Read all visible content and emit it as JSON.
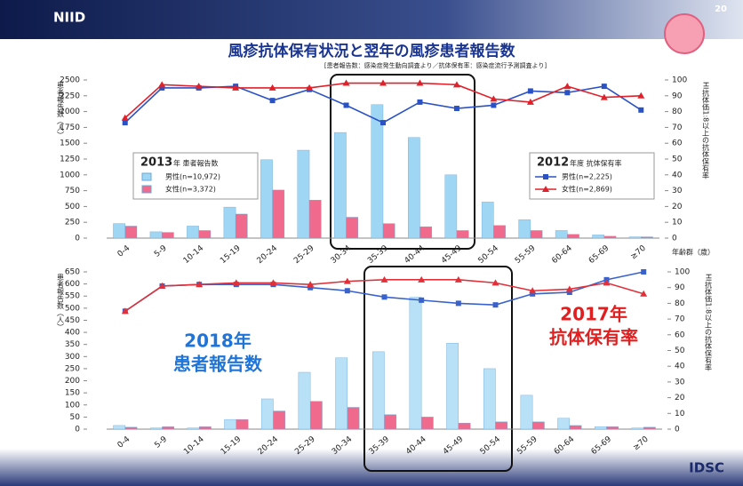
{
  "header": {
    "logo_left": "NIID",
    "logo_right": "IDSC",
    "slide_number": "20"
  },
  "chart_data": [
    {
      "type": "combo",
      "title": "風疹抗体保有状況と翌年の風疹患者報告数",
      "subtitle": "[患者報告数：感染症発生動向調査より／抗体保有率：感染症流行予測調査より]",
      "ylabel": "患者報告数（人）",
      "y2label": "HI抗体価1:8以上の抗体保有率",
      "xlabel": "年齢群（歳）",
      "categories": [
        "0-4",
        "5-9",
        "10-14",
        "15-19",
        "20-24",
        "25-29",
        "30-34",
        "35-39",
        "40-44",
        "45-49",
        "50-54",
        "55-59",
        "60-64",
        "65-69",
        "≥70"
      ],
      "series": [
        {
          "name": "男性(n=10,972)",
          "kind": "bar",
          "color": "#9fd6f4",
          "values": [
            230,
            100,
            190,
            490,
            1240,
            1390,
            1670,
            2110,
            1590,
            1000,
            570,
            290,
            120,
            50,
            20
          ]
        },
        {
          "name": "女性(n=3,372)",
          "kind": "bar",
          "color": "#ef6a8c",
          "values": [
            190,
            90,
            120,
            380,
            760,
            600,
            330,
            230,
            180,
            120,
            200,
            120,
            60,
            30,
            20
          ]
        },
        {
          "name": "男性(n=2,225)",
          "kind": "line",
          "marker": "square",
          "axis": "y2",
          "color": "#2a52c4",
          "values": [
            73,
            95,
            95,
            96,
            87,
            94,
            84,
            73,
            86,
            82,
            84,
            93,
            92,
            96,
            81
          ]
        },
        {
          "name": "女性(n=2,869)",
          "kind": "line",
          "marker": "triangle",
          "axis": "y2",
          "color": "#e0202a",
          "values": [
            76,
            97,
            96,
            95,
            95,
            95,
            98,
            98,
            98,
            97,
            88,
            86,
            96,
            89,
            90
          ]
        }
      ],
      "ylim": [
        0,
        2500
      ],
      "yticks": [
        0,
        250,
        500,
        750,
        1000,
        1250,
        1500,
        1750,
        2000,
        2250,
        2500
      ],
      "y2lim": [
        0,
        100
      ],
      "y2ticks": [
        0,
        10,
        20,
        30,
        40,
        50,
        60,
        70,
        80,
        90,
        100
      ],
      "legends": [
        {
          "year": "2013",
          "label": "年 患者報告数"
        },
        {
          "year": "2012",
          "label": "年度 抗体保有率"
        }
      ]
    },
    {
      "type": "combo",
      "ylabel": "患者報告数（人）",
      "y2label": "HI抗体価1:8以上の抗体保有率",
      "categories": [
        "0-4",
        "5-9",
        "10-14",
        "15-19",
        "20-24",
        "25-29",
        "30-34",
        "35-39",
        "40-44",
        "45-49",
        "50-54",
        "55-59",
        "60-64",
        "65-69",
        "≥70"
      ],
      "series": [
        {
          "kind": "bar",
          "color": "#b8e0f6",
          "values": [
            15,
            5,
            5,
            40,
            125,
            235,
            295,
            320,
            545,
            355,
            250,
            140,
            45,
            10,
            5
          ]
        },
        {
          "kind": "bar",
          "color": "#ef6a8c",
          "values": [
            8,
            10,
            10,
            40,
            75,
            115,
            90,
            60,
            50,
            25,
            30,
            30,
            15,
            10,
            8
          ]
        },
        {
          "kind": "line",
          "marker": "square",
          "axis": "y2",
          "color": "#3a62cc",
          "values": [
            75,
            91,
            92,
            92,
            92,
            90,
            88,
            84,
            82,
            80,
            79,
            86,
            87,
            95,
            100
          ]
        },
        {
          "kind": "line",
          "marker": "triangle",
          "axis": "y2",
          "color": "#e0303a",
          "values": [
            75,
            91,
            92,
            93,
            93,
            92,
            94,
            95,
            95,
            95,
            93,
            88,
            89,
            93,
            86
          ]
        }
      ],
      "ylim": [
        0,
        650
      ],
      "yticks": [
        0,
        50,
        100,
        150,
        200,
        250,
        300,
        350,
        400,
        450,
        500,
        550,
        600,
        650
      ],
      "y2lim": [
        0,
        100
      ],
      "y2ticks": [
        0,
        10,
        20,
        30,
        40,
        50,
        60,
        70,
        80,
        90,
        100
      ],
      "annotations": [
        {
          "lines": [
            "2018年",
            "患者報告数"
          ],
          "color": "#1f74d8"
        },
        {
          "lines": [
            "2017年",
            "抗体保有率"
          ],
          "color": "#e02020"
        }
      ]
    }
  ]
}
